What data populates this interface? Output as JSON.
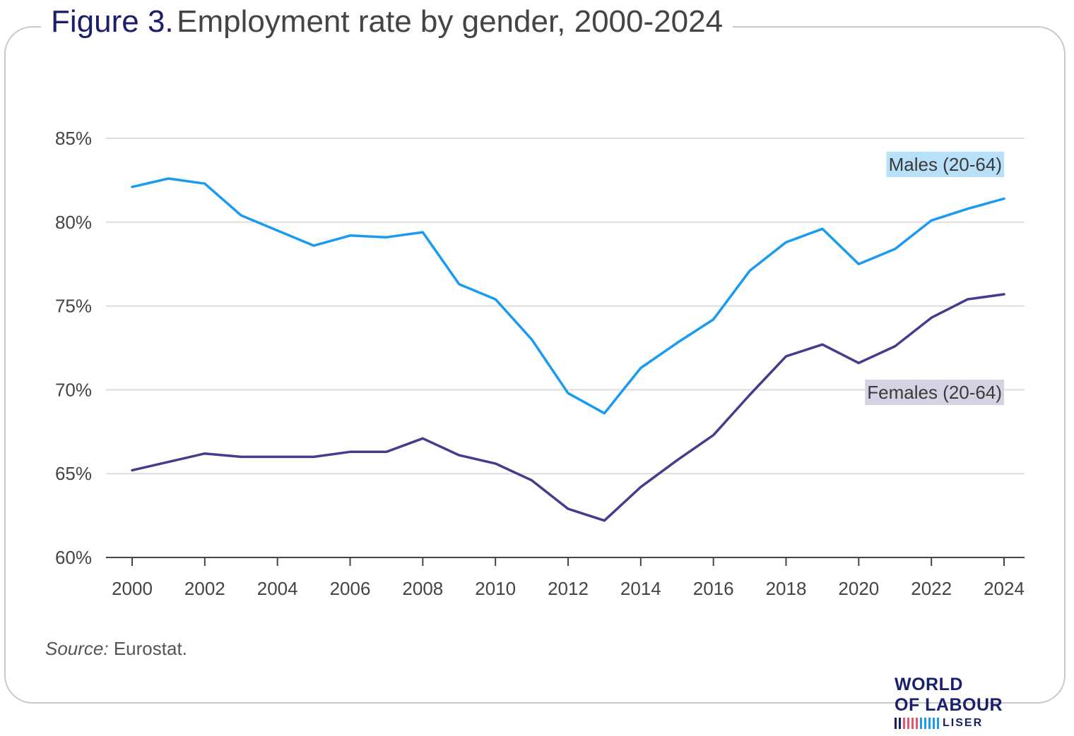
{
  "title": {
    "figure": "Figure 3.",
    "text": "Employment rate by gender, 2000-2024"
  },
  "source": {
    "label": "Source:",
    "text": "Eurostat."
  },
  "logo": {
    "line1": "WORLD",
    "line2": "OF LABOUR",
    "line3": "LISER"
  },
  "colors": {
    "males": "#1a9bf0",
    "females": "#4b3a8c",
    "males_label_bg": "#b8e0f8",
    "females_label_bg": "#d6d2e4",
    "grid": "#dddddd",
    "axis": "#444444",
    "logo_bars": [
      "#1a1f6b",
      "#1a1f6b",
      "#e05a6a",
      "#e05a6a",
      "#e05a6a",
      "#e05a6a",
      "#1a9bf0",
      "#1a9bf0",
      "#1a9bf0",
      "#1a9bf0",
      "#1a9bf0"
    ]
  },
  "chart_data": {
    "type": "line",
    "title": "Employment rate by gender, 2000-2024",
    "xlabel": "",
    "ylabel": "",
    "x": [
      2000,
      2001,
      2002,
      2003,
      2004,
      2005,
      2006,
      2007,
      2008,
      2009,
      2010,
      2011,
      2012,
      2013,
      2014,
      2015,
      2016,
      2017,
      2018,
      2019,
      2020,
      2021,
      2022,
      2023,
      2024
    ],
    "xticks": [
      "2000",
      "2002",
      "2004",
      "2006",
      "2008",
      "2010",
      "2012",
      "2014",
      "2016",
      "2018",
      "2020",
      "2022",
      "2024"
    ],
    "yticks": [
      "60%",
      "65%",
      "70%",
      "75%",
      "80%",
      "85%"
    ],
    "ylim": [
      60,
      85
    ],
    "grid": "horizontal",
    "series": [
      {
        "name": "Males (20-64)",
        "values": [
          82.1,
          82.6,
          82.3,
          80.4,
          79.5,
          78.6,
          79.2,
          79.1,
          79.4,
          76.3,
          75.4,
          73.0,
          69.8,
          68.6,
          71.3,
          72.8,
          74.2,
          77.1,
          78.8,
          79.6,
          77.5,
          78.4,
          80.1,
          80.8,
          81.4
        ]
      },
      {
        "name": "Females (20-64)",
        "values": [
          65.2,
          65.7,
          66.2,
          66.0,
          66.0,
          66.0,
          66.3,
          66.3,
          67.1,
          66.1,
          65.6,
          64.6,
          62.9,
          62.2,
          64.2,
          65.8,
          67.3,
          69.7,
          72.0,
          72.7,
          71.6,
          72.6,
          74.3,
          75.4,
          75.7
        ]
      }
    ]
  }
}
